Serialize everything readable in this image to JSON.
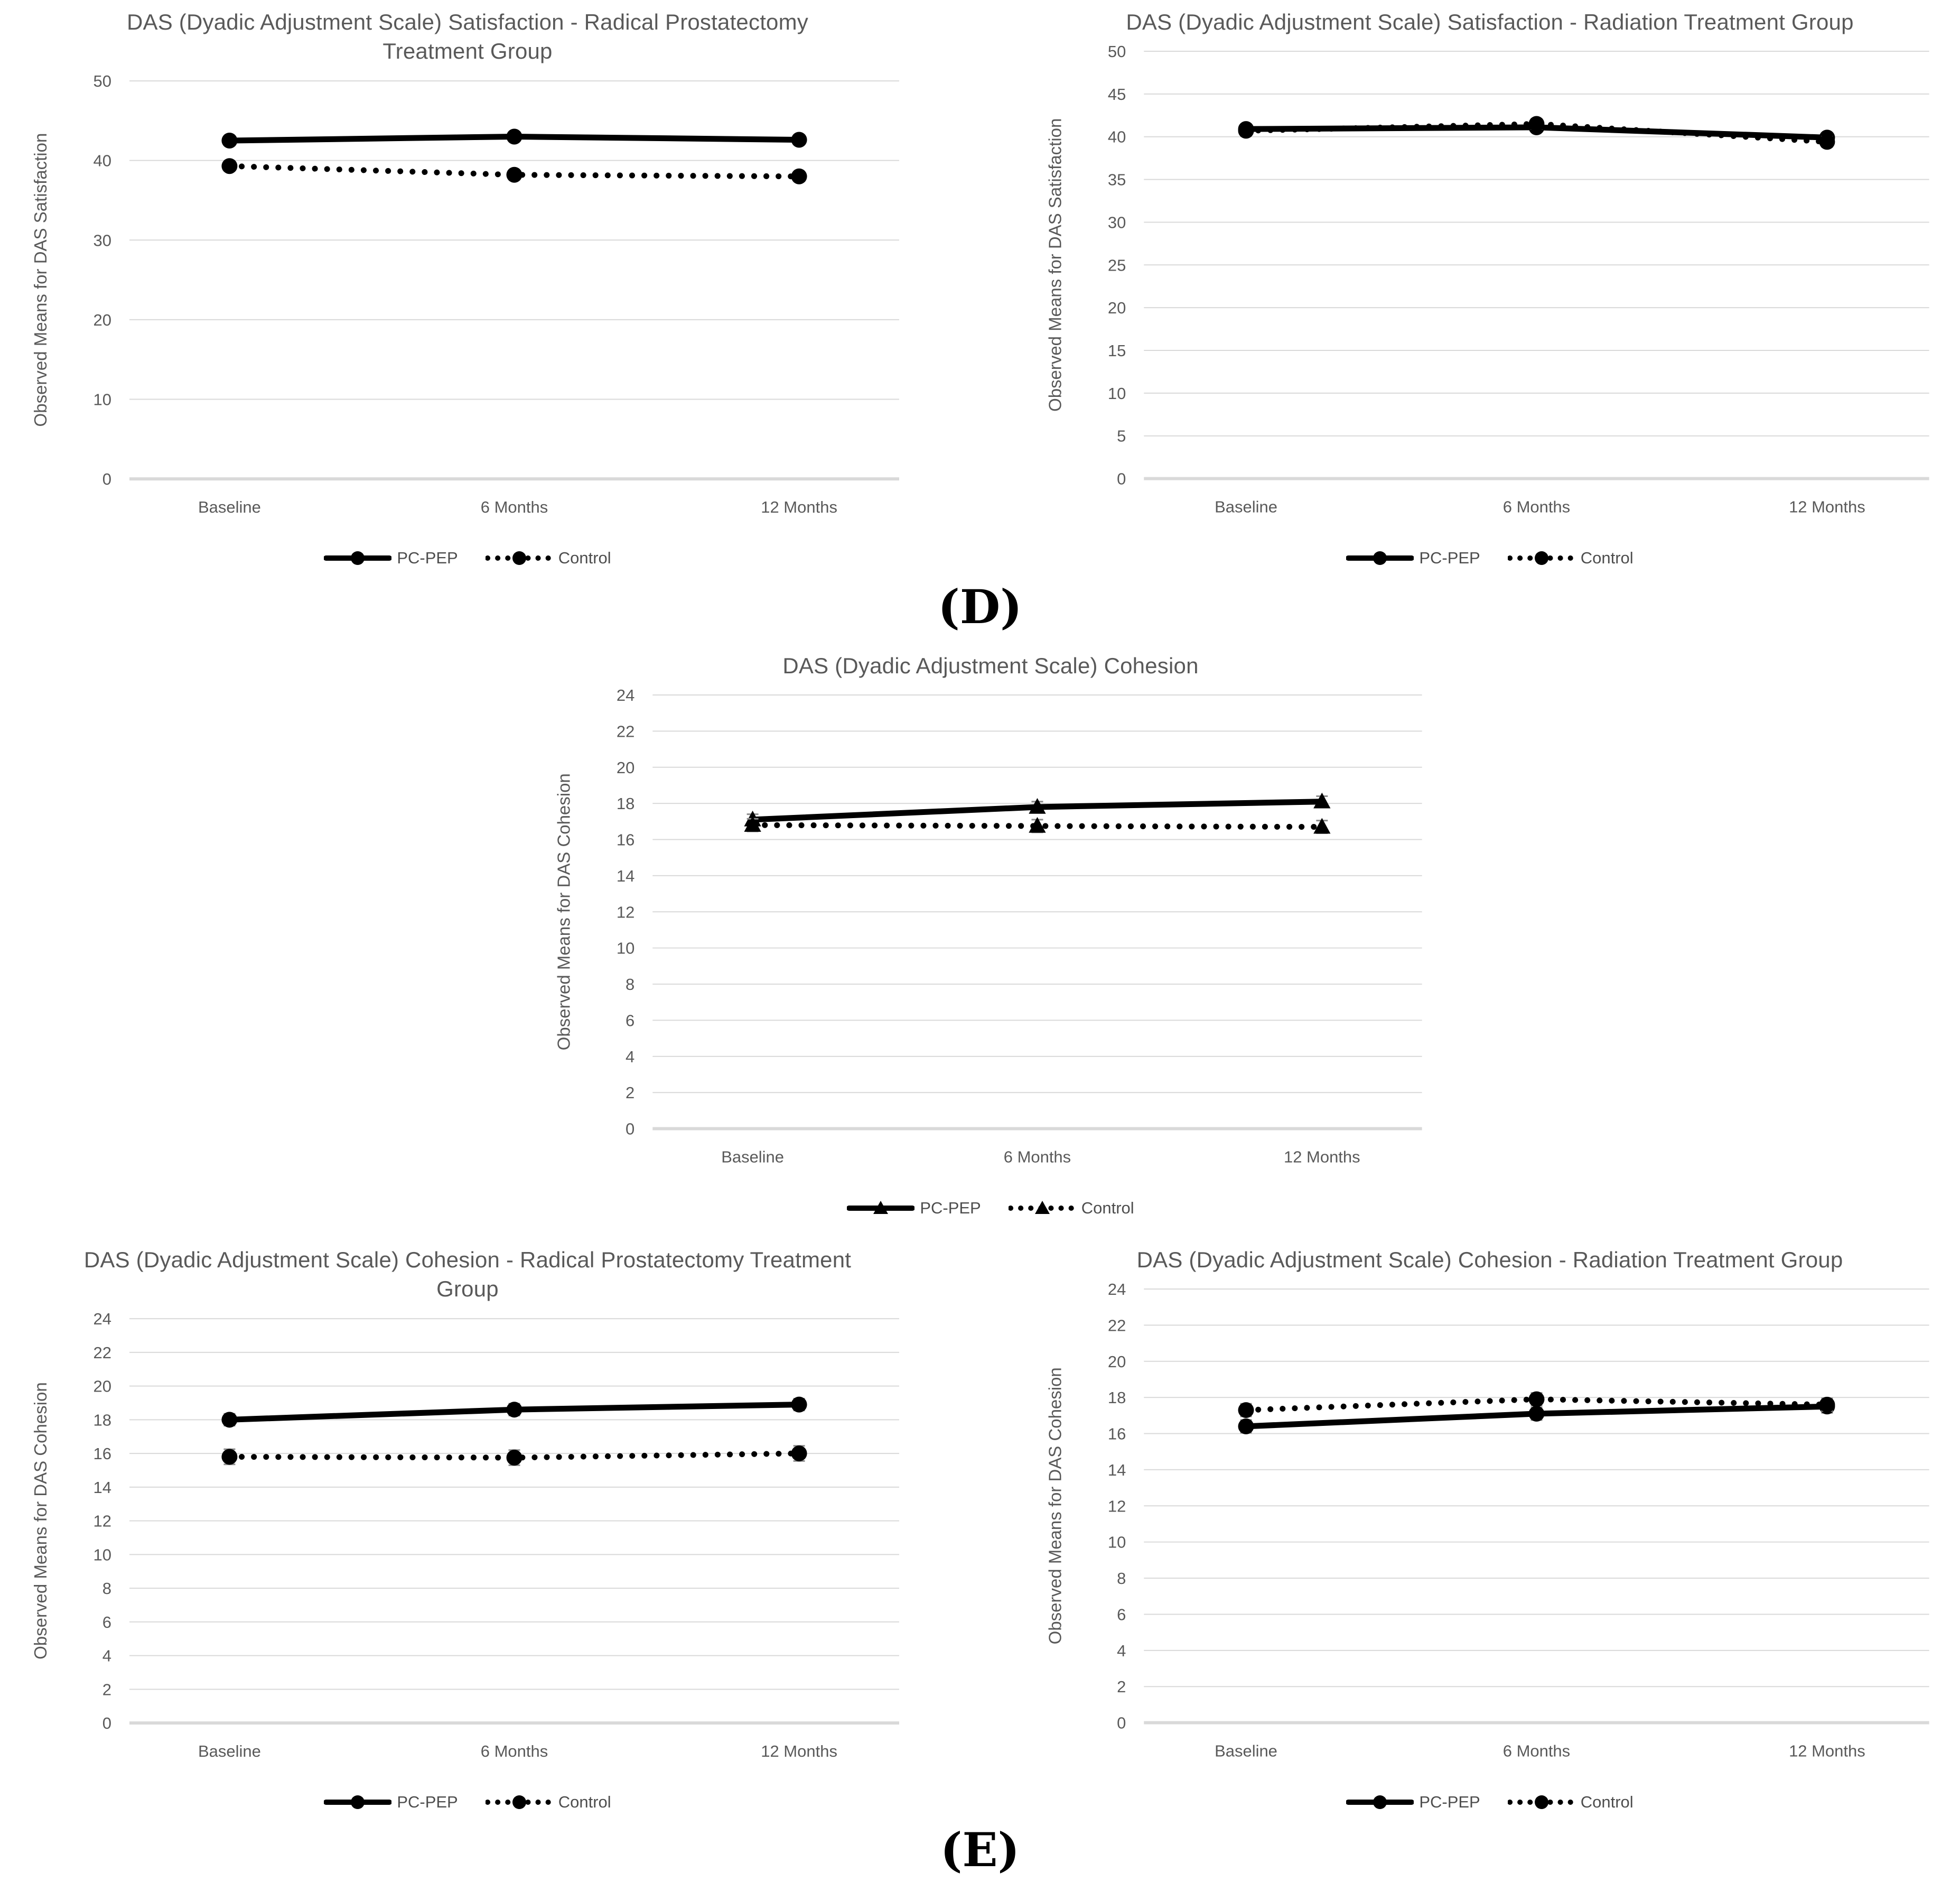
{
  "page": {
    "section_label_d": "(D)",
    "section_label_e": "(E)"
  },
  "chart_data": [
    {
      "id": "das-satisfaction-radical-prostatectomy",
      "type": "line",
      "title": "DAS (Dyadic Adjustment Scale) Satisfaction - Radical Prostatectomy Treatment Group",
      "ylabel": "Observed Means for DAS Satisfaction",
      "xlabel": "",
      "categories": [
        "Baseline",
        "6 Months",
        "12 Months"
      ],
      "ylim": [
        0,
        50
      ],
      "ytick_step": 10,
      "grid": true,
      "legend_position": "bottom",
      "series": [
        {
          "name": "PC-PEP",
          "style": "solid",
          "marker": "circle",
          "values": [
            42.5,
            43.0,
            42.6
          ],
          "error": 0.4
        },
        {
          "name": "Control",
          "style": "dotted",
          "marker": "circle",
          "values": [
            39.3,
            38.2,
            38.0
          ],
          "error": 0.6
        }
      ]
    },
    {
      "id": "das-satisfaction-radiation",
      "type": "line",
      "title": "DAS (Dyadic Adjustment Scale) Satisfaction - Radiation Treatment Group",
      "ylabel": "Observed Means for DAS Satisfaction",
      "xlabel": "",
      "categories": [
        "Baseline",
        "6 Months",
        "12 Months"
      ],
      "ylim": [
        0,
        50
      ],
      "ytick_step": 5,
      "grid": true,
      "legend_position": "bottom",
      "series": [
        {
          "name": "PC-PEP",
          "style": "solid",
          "marker": "circle",
          "values": [
            40.9,
            41.1,
            39.9
          ],
          "error": 0.5
        },
        {
          "name": "Control",
          "style": "dotted",
          "marker": "circle",
          "values": [
            40.7,
            41.5,
            39.4
          ],
          "error": 0.6
        }
      ]
    },
    {
      "id": "das-cohesion-overall",
      "type": "line",
      "title": "DAS (Dyadic Adjustment Scale) Cohesion",
      "ylabel": "Observed Means for DAS Cohesion",
      "xlabel": "",
      "categories": [
        "Baseline",
        "6 Months",
        "12 Months"
      ],
      "ylim": [
        0,
        24
      ],
      "ytick_step": 2,
      "grid": true,
      "legend_position": "bottom",
      "series": [
        {
          "name": "PC-PEP",
          "style": "solid",
          "marker": "triangle",
          "values": [
            17.1,
            17.8,
            18.1
          ],
          "error": 0.3
        },
        {
          "name": "Control",
          "style": "dotted",
          "marker": "triangle",
          "values": [
            16.8,
            16.75,
            16.7
          ],
          "error": 0.35
        }
      ]
    },
    {
      "id": "das-cohesion-radical-prostatectomy",
      "type": "line",
      "title": "DAS (Dyadic Adjustment Scale) Cohesion - Radical Prostatectomy Treatment Group",
      "ylabel": "Observed Means for DAS Cohesion",
      "xlabel": "",
      "categories": [
        "Baseline",
        "6 Months",
        "12 Months"
      ],
      "ylim": [
        0,
        24
      ],
      "ytick_step": 2,
      "grid": true,
      "legend_position": "bottom",
      "series": [
        {
          "name": "PC-PEP",
          "style": "solid",
          "marker": "circle",
          "values": [
            18.0,
            18.6,
            18.9
          ],
          "error": 0.35
        },
        {
          "name": "Control",
          "style": "dotted",
          "marker": "circle",
          "values": [
            15.8,
            15.75,
            16.0
          ],
          "error": 0.45
        }
      ]
    },
    {
      "id": "das-cohesion-radiation",
      "type": "line",
      "title": "DAS (Dyadic Adjustment Scale) Cohesion - Radiation Treatment Group",
      "ylabel": "Observed Means for DAS Cohesion",
      "xlabel": "",
      "categories": [
        "Baseline",
        "6 Months",
        "12 Months"
      ],
      "ylim": [
        0,
        24
      ],
      "ytick_step": 2,
      "grid": true,
      "legend_position": "bottom",
      "series": [
        {
          "name": "PC-PEP",
          "style": "solid",
          "marker": "circle",
          "values": [
            16.4,
            17.1,
            17.5
          ],
          "error": 0.35
        },
        {
          "name": "Control",
          "style": "dotted",
          "marker": "circle",
          "values": [
            17.3,
            17.9,
            17.6
          ],
          "error": 0.35
        }
      ]
    }
  ],
  "colors": {
    "series": "#000000",
    "axis_text": "#595959",
    "gridline": "#d9d9d9",
    "error_bar": "#8c8c8c"
  }
}
